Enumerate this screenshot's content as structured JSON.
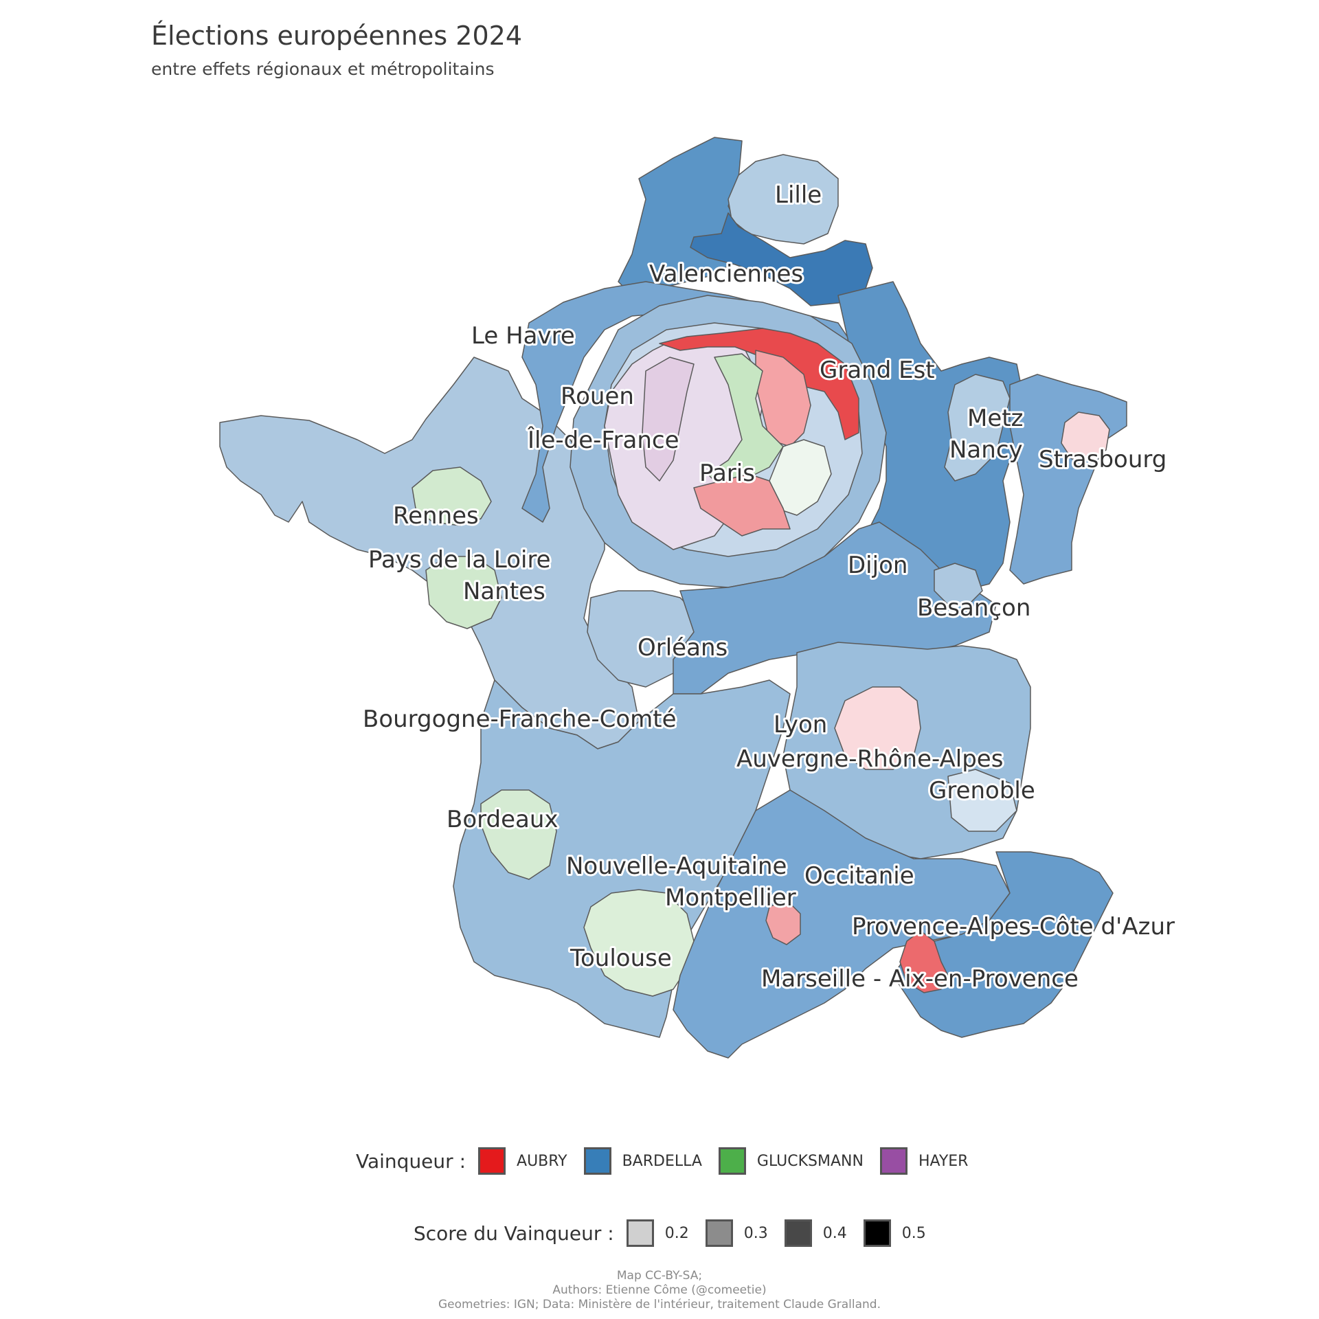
{
  "header": {
    "title": "Élections européennes 2024",
    "subtitle": "entre effets régionaux et métropolitains"
  },
  "map": {
    "labels": [
      {
        "id": "lille",
        "text": "Lille"
      },
      {
        "id": "valenciennes",
        "text": "Valenciennes"
      },
      {
        "id": "le-havre",
        "text": "Le Havre"
      },
      {
        "id": "grand-est",
        "text": "Grand Est"
      },
      {
        "id": "rouen",
        "text": "Rouen"
      },
      {
        "id": "metz",
        "text": "Metz"
      },
      {
        "id": "ile-de-france",
        "text": "Île-de-France"
      },
      {
        "id": "nancy",
        "text": "Nancy"
      },
      {
        "id": "strasbourg",
        "text": "Strasbourg"
      },
      {
        "id": "paris",
        "text": "Paris"
      },
      {
        "id": "rennes",
        "text": "Rennes"
      },
      {
        "id": "pays-de-la-loire",
        "text": "Pays de la Loire"
      },
      {
        "id": "dijon",
        "text": "Dijon"
      },
      {
        "id": "nantes",
        "text": "Nantes"
      },
      {
        "id": "besancon",
        "text": "Besançon"
      },
      {
        "id": "orleans",
        "text": "Orléans"
      },
      {
        "id": "bourgogne-franche-comte",
        "text": "Bourgogne-Franche-Comté"
      },
      {
        "id": "lyon",
        "text": "Lyon"
      },
      {
        "id": "auvergne-rhone-alpes",
        "text": "Auvergne-Rhône-Alpes"
      },
      {
        "id": "grenoble",
        "text": "Grenoble"
      },
      {
        "id": "bordeaux",
        "text": "Bordeaux"
      },
      {
        "id": "nouvelle-aquitaine",
        "text": "Nouvelle-Aquitaine"
      },
      {
        "id": "occitanie",
        "text": "Occitanie"
      },
      {
        "id": "montpellier",
        "text": "Montpellier"
      },
      {
        "id": "provence-alpes-cote-dazur",
        "text": "Provence-Alpes-Côte d'Azur"
      },
      {
        "id": "toulouse",
        "text": "Toulouse"
      },
      {
        "id": "marseille-aix",
        "text": "Marseille - Aix-en-Provence"
      }
    ]
  },
  "legend": {
    "winner": {
      "title": "Vainqueur :",
      "items": [
        {
          "label": "AUBRY",
          "color": "#e41a1c"
        },
        {
          "label": "BARDELLA",
          "color": "#377eb8"
        },
        {
          "label": "GLUCKSMANN",
          "color": "#4daf4a"
        },
        {
          "label": "HAYER",
          "color": "#984ea3"
        }
      ]
    },
    "score": {
      "title": "Score du Vainqueur :",
      "items": [
        {
          "label": "0.2",
          "color": "#d0d0d0"
        },
        {
          "label": "0.3",
          "color": "#8c8c8c"
        },
        {
          "label": "0.4",
          "color": "#484848"
        },
        {
          "label": "0.5",
          "color": "#000000"
        }
      ]
    }
  },
  "credits": {
    "line1": "Map CC-BY-SA;",
    "line2": "Authors: Etienne Côme (@comeetie)",
    "line3": "Geometries: IGN; Data: Ministère de l'intérieur, traitement Claude Gralland."
  }
}
